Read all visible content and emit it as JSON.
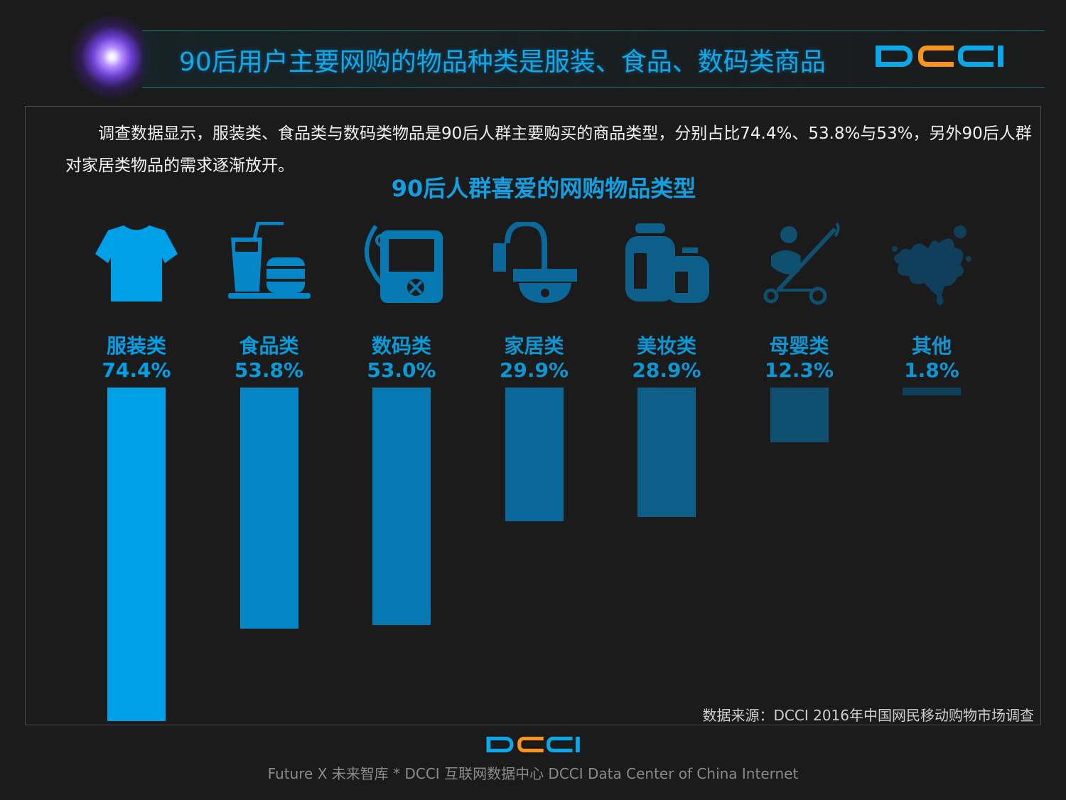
{
  "header": {
    "title": "90后用户主要网购的物品种类是服装、食品、数码类商品",
    "logo": "DCCI"
  },
  "description": "调查数据显示，服装类、食品类与数码类物品是90后人群主要购买的商品类型，分别占比74.4%、53.8%与53%，另外90后人群对家居类物品的需求逐渐放开。",
  "source": "数据来源：DCCI 2016年中国网民移动购物市场调查",
  "footer": {
    "logo": "DCCI",
    "text": "Future X 未来智库 * DCCI 互联网数据中心 DCCI Data Center of China Internet"
  },
  "colors": {
    "accent": "#12a0e2",
    "logo_orange": "#f7931e"
  },
  "chart_data": {
    "type": "bar",
    "title": "90后人群喜爱的网购物品类型",
    "categories": [
      "服装类",
      "食品类",
      "数码类",
      "家居类",
      "美妆类",
      "母婴类",
      "其他"
    ],
    "values": [
      74.4,
      53.8,
      53.0,
      29.9,
      28.9,
      12.3,
      1.8
    ],
    "value_labels": [
      "74.4%",
      "53.8%",
      "53.0%",
      "29.9%",
      "28.9%",
      "12.3%",
      "1.8%"
    ],
    "icons": [
      "tshirt-icon",
      "drink-burger-icon",
      "digital-device-icon",
      "camera-icon",
      "cosmetics-icon",
      "stroller-icon",
      "splash-icon"
    ],
    "bar_colors": [
      "#00a0e9",
      "#0586c6",
      "#0679b2",
      "#0a689a",
      "#0d5e88",
      "#0f4f70",
      "#0f3f5a"
    ],
    "unit": "%",
    "xlabel": "",
    "ylabel": "",
    "ylim": [
      0,
      80
    ],
    "grid": false
  }
}
